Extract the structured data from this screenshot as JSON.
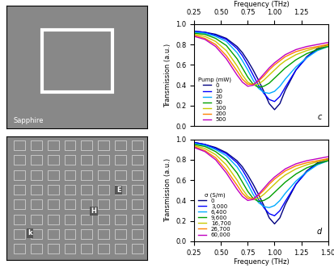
{
  "images": [
    {
      "labels": [
        "Sapphire"
      ]
    },
    {
      "labels": [
        "E",
        "H",
        "k"
      ]
    }
  ],
  "chart_data": [
    {
      "type": "line",
      "panel_label": "c",
      "xlabel": "Frequency (THz)",
      "xaxis_position": "top",
      "ylabel": "Transmission (a.u.)",
      "legend_title": "Pump (mW)",
      "legend": "lower left",
      "xlim": [
        0.25,
        1.5
      ],
      "xticks": [
        {
          "value": 0.25,
          "label": "0.25"
        },
        {
          "value": 0.5,
          "label": "0.50"
        },
        {
          "value": 0.75,
          "label": "0.75"
        },
        {
          "value": 1.0,
          "label": "1.00"
        },
        {
          "value": 1.25,
          "label": "1.25"
        }
      ],
      "ylim": [
        0.0,
        1.0
      ],
      "yticks": [
        {
          "value": 0.0,
          "label": "0.0"
        },
        {
          "value": 0.2,
          "label": "0.2"
        },
        {
          "value": 0.4,
          "label": "0.4"
        },
        {
          "value": 0.6,
          "label": "0.6"
        },
        {
          "value": 0.8,
          "label": "0.8"
        },
        {
          "value": 1.0,
          "label": "1.0"
        }
      ],
      "x": [
        0.25,
        0.35,
        0.45,
        0.55,
        0.65,
        0.7,
        0.75,
        0.8,
        0.85,
        0.9,
        0.95,
        1.0,
        1.05,
        1.1,
        1.2,
        1.3,
        1.4,
        1.5
      ],
      "series": [
        {
          "name": "0",
          "color": "#000080",
          "values": [
            0.93,
            0.92,
            0.9,
            0.86,
            0.78,
            0.72,
            0.64,
            0.55,
            0.45,
            0.34,
            0.22,
            0.16,
            0.22,
            0.35,
            0.55,
            0.68,
            0.76,
            0.8
          ]
        },
        {
          "name": "10",
          "color": "#0000ff",
          "values": [
            0.93,
            0.92,
            0.89,
            0.85,
            0.76,
            0.69,
            0.6,
            0.5,
            0.4,
            0.32,
            0.26,
            0.24,
            0.29,
            0.38,
            0.55,
            0.67,
            0.75,
            0.79
          ]
        },
        {
          "name": "20",
          "color": "#00aaff",
          "values": [
            0.92,
            0.91,
            0.88,
            0.83,
            0.72,
            0.64,
            0.55,
            0.45,
            0.37,
            0.33,
            0.32,
            0.34,
            0.39,
            0.46,
            0.58,
            0.67,
            0.74,
            0.78
          ]
        },
        {
          "name": "50",
          "color": "#00a000",
          "values": [
            0.91,
            0.9,
            0.86,
            0.79,
            0.66,
            0.57,
            0.48,
            0.41,
            0.38,
            0.39,
            0.42,
            0.47,
            0.52,
            0.57,
            0.65,
            0.71,
            0.75,
            0.78
          ]
        },
        {
          "name": "100",
          "color": "#c8c800",
          "values": [
            0.9,
            0.88,
            0.83,
            0.74,
            0.59,
            0.5,
            0.43,
            0.4,
            0.41,
            0.45,
            0.5,
            0.55,
            0.6,
            0.64,
            0.7,
            0.74,
            0.77,
            0.79
          ]
        },
        {
          "name": "200",
          "color": "#ff8000",
          "values": [
            0.89,
            0.86,
            0.8,
            0.69,
            0.54,
            0.46,
            0.41,
            0.41,
            0.44,
            0.49,
            0.55,
            0.6,
            0.64,
            0.68,
            0.73,
            0.76,
            0.78,
            0.8
          ]
        },
        {
          "name": "500",
          "color": "#c000c0",
          "values": [
            0.88,
            0.85,
            0.78,
            0.66,
            0.5,
            0.43,
            0.39,
            0.4,
            0.45,
            0.51,
            0.57,
            0.62,
            0.66,
            0.7,
            0.75,
            0.78,
            0.8,
            0.82
          ]
        }
      ]
    },
    {
      "type": "line",
      "panel_label": "d",
      "xlabel": "Frequency (THz)",
      "xaxis_position": "bottom",
      "ylabel": "Transmission (a.u.)",
      "legend_title": "σ (S/m)",
      "legend": "lower left",
      "xlim": [
        0.25,
        1.5
      ],
      "xticks": [
        {
          "value": 0.25,
          "label": "0.25"
        },
        {
          "value": 0.5,
          "label": "0.50"
        },
        {
          "value": 0.75,
          "label": "0.75"
        },
        {
          "value": 1.0,
          "label": "1.00"
        },
        {
          "value": 1.25,
          "label": "1.25"
        },
        {
          "value": 1.5,
          "label": "1.50"
        }
      ],
      "ylim": [
        0.0,
        1.0
      ],
      "yticks": [
        {
          "value": 0.0,
          "label": "0.0"
        },
        {
          "value": 0.2,
          "label": "0.2"
        },
        {
          "value": 0.4,
          "label": "0.4"
        },
        {
          "value": 0.6,
          "label": "0.6"
        },
        {
          "value": 0.8,
          "label": "0.8"
        },
        {
          "value": 1.0,
          "label": "1.0"
        }
      ],
      "x": [
        0.25,
        0.35,
        0.45,
        0.55,
        0.65,
        0.7,
        0.75,
        0.8,
        0.85,
        0.9,
        0.95,
        1.0,
        1.05,
        1.1,
        1.2,
        1.3,
        1.4,
        1.5
      ],
      "series": [
        {
          "name": "0",
          "color": "#000080",
          "values": [
            0.97,
            0.95,
            0.92,
            0.87,
            0.79,
            0.73,
            0.65,
            0.56,
            0.46,
            0.35,
            0.23,
            0.17,
            0.23,
            0.36,
            0.56,
            0.69,
            0.77,
            0.81
          ]
        },
        {
          "name": "3,000",
          "color": "#0000ff",
          "values": [
            0.97,
            0.95,
            0.91,
            0.86,
            0.77,
            0.7,
            0.61,
            0.51,
            0.41,
            0.33,
            0.27,
            0.25,
            0.3,
            0.39,
            0.56,
            0.68,
            0.76,
            0.8
          ]
        },
        {
          "name": "6,400",
          "color": "#00aaff",
          "values": [
            0.96,
            0.94,
            0.9,
            0.84,
            0.73,
            0.65,
            0.56,
            0.46,
            0.38,
            0.34,
            0.33,
            0.35,
            0.4,
            0.47,
            0.59,
            0.68,
            0.75,
            0.79
          ]
        },
        {
          "name": "9,600",
          "color": "#00a000",
          "values": [
            0.95,
            0.93,
            0.88,
            0.8,
            0.67,
            0.58,
            0.49,
            0.42,
            0.39,
            0.4,
            0.43,
            0.48,
            0.53,
            0.58,
            0.66,
            0.72,
            0.76,
            0.79
          ]
        },
        {
          "name": "16,700",
          "color": "#c8c800",
          "values": [
            0.94,
            0.91,
            0.85,
            0.75,
            0.6,
            0.51,
            0.44,
            0.41,
            0.42,
            0.46,
            0.51,
            0.56,
            0.61,
            0.65,
            0.71,
            0.75,
            0.78,
            0.8
          ]
        },
        {
          "name": "26,700",
          "color": "#ff8000",
          "values": [
            0.93,
            0.89,
            0.82,
            0.7,
            0.55,
            0.47,
            0.42,
            0.42,
            0.45,
            0.5,
            0.56,
            0.61,
            0.65,
            0.69,
            0.74,
            0.77,
            0.79,
            0.81
          ]
        },
        {
          "name": "60,000",
          "color": "#c000c0",
          "values": [
            0.92,
            0.88,
            0.8,
            0.67,
            0.51,
            0.44,
            0.4,
            0.41,
            0.46,
            0.52,
            0.58,
            0.63,
            0.67,
            0.71,
            0.76,
            0.79,
            0.81,
            0.83
          ]
        }
      ]
    }
  ]
}
